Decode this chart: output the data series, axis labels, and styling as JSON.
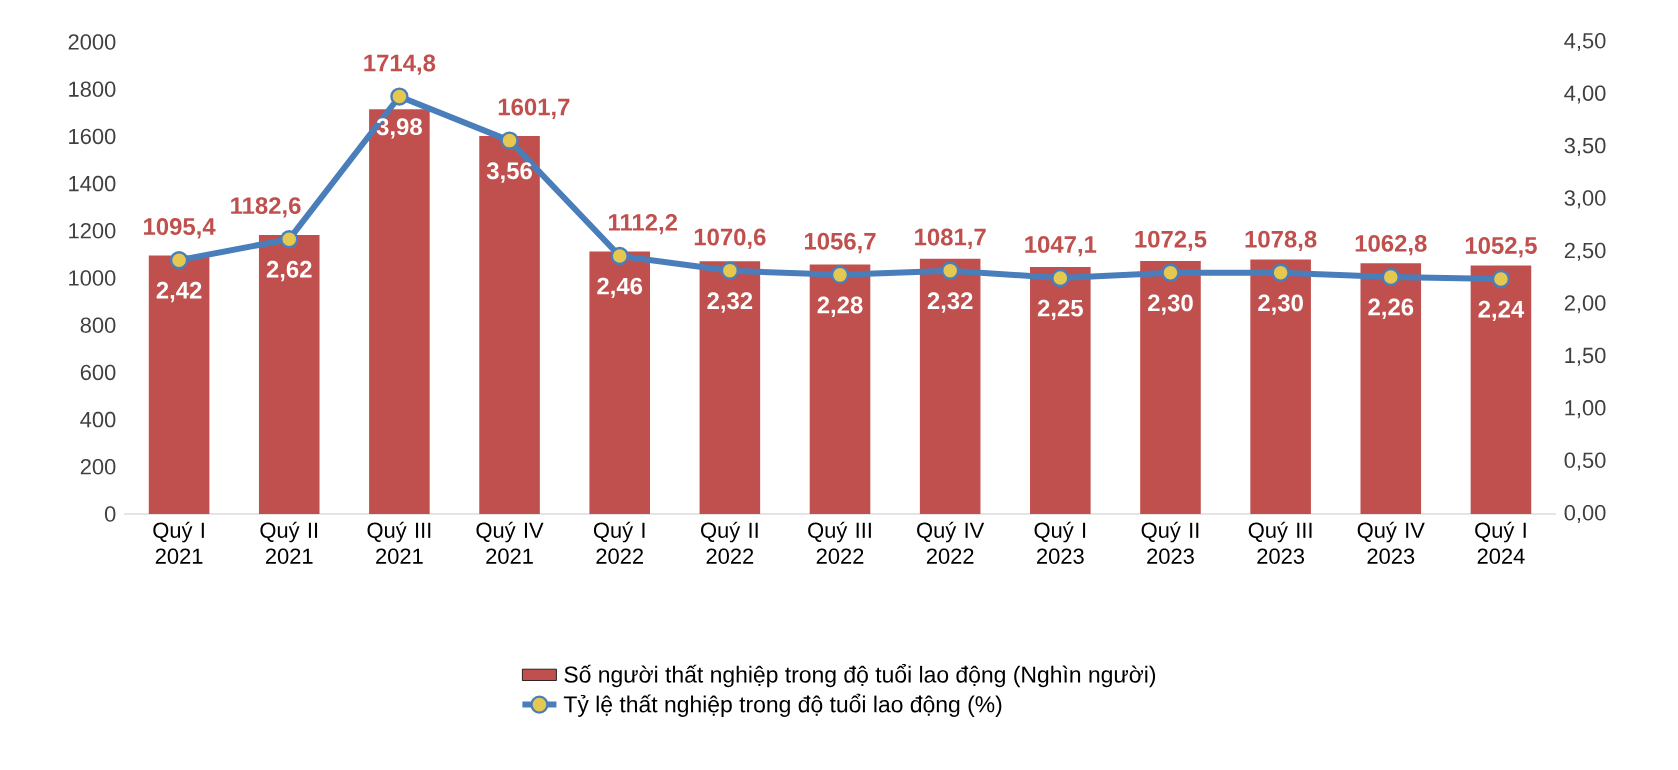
{
  "chart_data": {
    "type": "bar",
    "categories": [
      "Quý I 2021",
      "Quý II 2021",
      "Quý III 2021",
      "Quý IV 2021",
      "Quý I 2022",
      "Quý II 2022",
      "Quý III 2022",
      "Quý IV 2022",
      "Quý I 2023",
      "Quý II 2023",
      "Quý III 2023",
      "Quý IV 2023",
      "Quý I 2024"
    ],
    "series": [
      {
        "name": "Số người thất nghiệp trong độ tuổi lao động (Nghìn người)",
        "color": "#c0504d",
        "values": [
          1095.4,
          1182.6,
          1714.8,
          1601.7,
          1112.2,
          1070.6,
          1056.7,
          1081.7,
          1047.1,
          1072.5,
          1078.8,
          1062.8,
          1052.5
        ],
        "value_labels": [
          "1095,4",
          "1182,6",
          "1714,8",
          "1601,7",
          "1112,2",
          "1070,6",
          "1056,7",
          "1081,7",
          "1047,1",
          "1072,5",
          "1078,8",
          "1062,8",
          "1052,5"
        ]
      },
      {
        "name": "Tỷ lệ thất nghiệp trong độ tuổi lao động (%)",
        "type": "line",
        "axis": "y2",
        "color": "#4a7ebb",
        "values": [
          2.42,
          2.62,
          3.98,
          3.56,
          2.46,
          2.32,
          2.28,
          2.32,
          2.25,
          2.3,
          2.3,
          2.26,
          2.24
        ],
        "value_labels": [
          "2,42",
          "2,62",
          "3,98",
          "3,56",
          "2,46",
          "2,32",
          "2,28",
          "2,32",
          "2,25",
          "2,30",
          "2,30",
          "2,26",
          "2,24"
        ]
      }
    ],
    "ylim": [
      0,
      2000
    ],
    "yticks": [
      0,
      200,
      400,
      600,
      800,
      1000,
      1200,
      1400,
      1600,
      1800,
      2000
    ],
    "y2lim": [
      0,
      4.5
    ],
    "y2ticks": [
      {
        "value": 0,
        "label": "0,00"
      },
      {
        "value": 0.5,
        "label": "0,50"
      },
      {
        "value": 1,
        "label": "1,00"
      },
      {
        "value": 1.5,
        "label": "1,50"
      },
      {
        "value": 2,
        "label": "2,00"
      },
      {
        "value": 2.5,
        "label": "2,50"
      },
      {
        "value": 3,
        "label": "3,00"
      },
      {
        "value": 3.5,
        "label": "3,50"
      },
      {
        "value": 4,
        "label": "4,00"
      },
      {
        "value": 4.5,
        "label": "4,50"
      }
    ],
    "marker": "circle",
    "line_style": "solid",
    "legend": "bottom",
    "grid": false
  }
}
